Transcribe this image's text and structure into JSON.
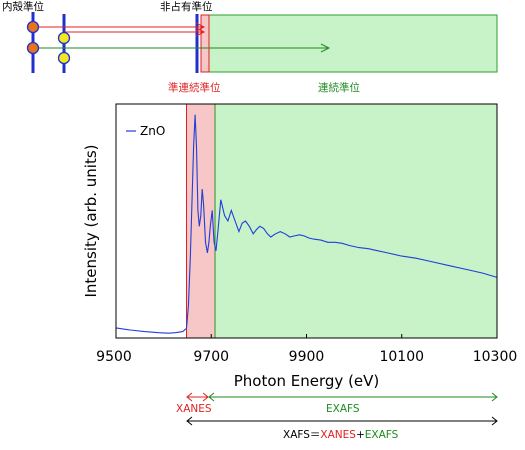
{
  "energy_diagram": {
    "core_level_label": "内殻準位",
    "unoccupied_level_label": "非占有準位",
    "quasi_continuum_label": "準連続準位",
    "continuum_label": "連続準位"
  },
  "chart_data": {
    "type": "line",
    "xlabel": "Photon Energy (eV)",
    "ylabel": "Intensity (arb. units)",
    "xlim": [
      9500,
      10300
    ],
    "ylim": [
      0,
      2.2
    ],
    "x_ticks": [
      9500,
      9700,
      9900,
      10100,
      10300
    ],
    "x_tick_labels": [
      "9500",
      "9700",
      "9900",
      "10100",
      "10300"
    ],
    "grid": false,
    "legend_position": "top-left",
    "series": [
      {
        "name": "ZnO",
        "color": "#1f3fd8",
        "x": [
          9500,
          9530,
          9560,
          9590,
          9610,
          9625,
          9640,
          9648,
          9652,
          9656,
          9660,
          9663,
          9666,
          9669,
          9672,
          9675,
          9678,
          9681,
          9684,
          9688,
          9692,
          9695,
          9698,
          9702,
          9706,
          9710,
          9714,
          9720,
          9728,
          9735,
          9742,
          9750,
          9758,
          9765,
          9772,
          9780,
          9788,
          9795,
          9802,
          9810,
          9818,
          9825,
          9835,
          9845,
          9855,
          9865,
          9875,
          9885,
          9895,
          9905,
          9915,
          9930,
          9945,
          9960,
          9975,
          9990,
          10010,
          10030,
          10050,
          10070,
          10100,
          10130,
          10160,
          10200,
          10240,
          10270,
          10300
        ],
        "y": [
          0.095,
          0.075,
          0.06,
          0.05,
          0.045,
          0.05,
          0.06,
          0.09,
          0.3,
          0.75,
          1.35,
          1.8,
          2.1,
          1.8,
          1.2,
          1.05,
          1.15,
          1.4,
          1.25,
          0.9,
          0.8,
          0.9,
          1.05,
          1.2,
          0.9,
          0.82,
          1.0,
          1.3,
          1.15,
          1.1,
          1.2,
          1.1,
          1.0,
          1.08,
          1.1,
          1.05,
          0.98,
          1.02,
          1.05,
          1.03,
          0.98,
          0.95,
          0.98,
          1.0,
          0.98,
          0.95,
          0.96,
          0.97,
          0.96,
          0.94,
          0.93,
          0.92,
          0.9,
          0.9,
          0.89,
          0.87,
          0.85,
          0.84,
          0.82,
          0.8,
          0.77,
          0.75,
          0.72,
          0.68,
          0.64,
          0.61,
          0.57
        ]
      }
    ],
    "regions": [
      {
        "name": "XANES",
        "from": 9648,
        "to": 9708,
        "fill": "#f7c6c6",
        "stroke": "#e02020"
      },
      {
        "name": "EXAFS",
        "from": 9708,
        "to": 10300,
        "fill": "#c8f2c8",
        "stroke": "#2aa02a"
      }
    ]
  },
  "range_annotations": {
    "xanes_label": "XANES",
    "exafs_label": "EXAFS",
    "xafs_prefix": "XAFS",
    "xafs_equals": "＝",
    "xafs_xanes": "XANES",
    "xafs_plus": "+",
    "xafs_exafs": "EXAFS"
  },
  "colors": {
    "xanes": "#e02020",
    "exafs": "#1e8a1e",
    "series": "#1f3fd8",
    "core_dot": "#e8731c",
    "yellow_dot": "#f2e81e"
  }
}
